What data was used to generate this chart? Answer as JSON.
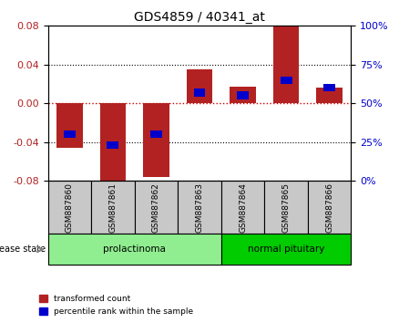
{
  "title": "GDS4859 / 40341_at",
  "samples": [
    "GSM887860",
    "GSM887861",
    "GSM887862",
    "GSM887863",
    "GSM887864",
    "GSM887865",
    "GSM887866"
  ],
  "red_values": [
    -0.046,
    -0.083,
    -0.076,
    0.035,
    0.017,
    0.079,
    0.016
  ],
  "blue_percentiles": [
    30,
    23,
    30,
    57,
    55,
    65,
    60
  ],
  "ylim": [
    -0.08,
    0.08
  ],
  "yticks_left": [
    -0.08,
    -0.04,
    0,
    0.04,
    0.08
  ],
  "yticks_right": [
    0,
    25,
    50,
    75,
    100
  ],
  "bar_color": "#b22222",
  "dot_color": "#0000cd",
  "grid_color": "#000000",
  "zero_line_color": "#cc0000",
  "groups": [
    {
      "label": "prolactinoma",
      "samples": [
        0,
        1,
        2,
        3
      ],
      "color": "#90ee90"
    },
    {
      "label": "normal pituitary",
      "samples": [
        4,
        5,
        6
      ],
      "color": "#00cc00"
    }
  ],
  "group_label_prefix": "disease state",
  "legend_red": "transformed count",
  "legend_blue": "percentile rank within the sample",
  "bg_plot": "#ffffff",
  "bg_sample_labels": "#c8c8c8",
  "bar_width": 0.6
}
